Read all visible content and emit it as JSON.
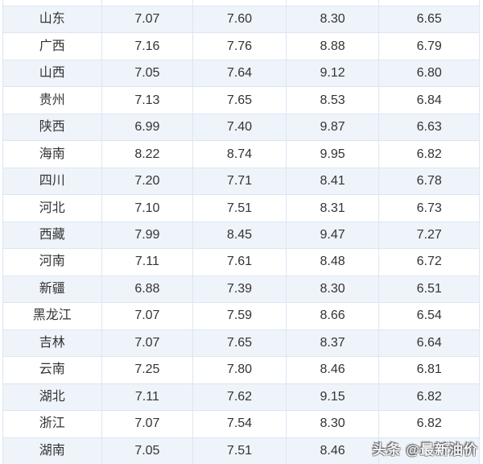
{
  "colors": {
    "row_stripe": "#eef4fa",
    "row_white": "#ffffff",
    "cell_border": "#dce6f1",
    "cell_text": "#333333",
    "watermark_text": "#ffffff"
  },
  "chart_data": {
    "type": "table",
    "title": "",
    "column_headers_visible": [],
    "rows": [
      {
        "province": "山东",
        "values": [
          "7.07",
          "7.60",
          "8.30",
          "6.65"
        ]
      },
      {
        "province": "广西",
        "values": [
          "7.16",
          "7.76",
          "8.88",
          "6.79"
        ]
      },
      {
        "province": "山西",
        "values": [
          "7.05",
          "7.64",
          "9.12",
          "6.80"
        ]
      },
      {
        "province": "贵州",
        "values": [
          "7.13",
          "7.65",
          "8.53",
          "6.84"
        ]
      },
      {
        "province": "陕西",
        "values": [
          "6.99",
          "7.40",
          "9.87",
          "6.63"
        ]
      },
      {
        "province": "海南",
        "values": [
          "8.22",
          "8.74",
          "9.95",
          "6.82"
        ]
      },
      {
        "province": "四川",
        "values": [
          "7.20",
          "7.71",
          "8.41",
          "6.78"
        ]
      },
      {
        "province": "河北",
        "values": [
          "7.10",
          "7.51",
          "8.31",
          "6.73"
        ]
      },
      {
        "province": "西藏",
        "values": [
          "7.99",
          "8.45",
          "9.47",
          "7.27"
        ]
      },
      {
        "province": "河南",
        "values": [
          "7.11",
          "7.61",
          "8.48",
          "6.72"
        ]
      },
      {
        "province": "新疆",
        "values": [
          "6.88",
          "7.39",
          "8.30",
          "6.51"
        ]
      },
      {
        "province": "黑龙江",
        "values": [
          "7.07",
          "7.59",
          "8.66",
          "6.54"
        ]
      },
      {
        "province": "吉林",
        "values": [
          "7.07",
          "7.65",
          "8.37",
          "6.64"
        ]
      },
      {
        "province": "云南",
        "values": [
          "7.25",
          "7.80",
          "8.46",
          "6.81"
        ]
      },
      {
        "province": "湖北",
        "values": [
          "7.11",
          "7.62",
          "9.15",
          "6.82"
        ]
      },
      {
        "province": "浙江",
        "values": [
          "7.07",
          "7.54",
          "8.30",
          "6.82"
        ]
      },
      {
        "province": "湖南",
        "values": [
          "7.05",
          "7.51",
          "8.46",
          ""
        ]
      }
    ]
  },
  "watermark": {
    "text": "头条 @最新油价"
  }
}
